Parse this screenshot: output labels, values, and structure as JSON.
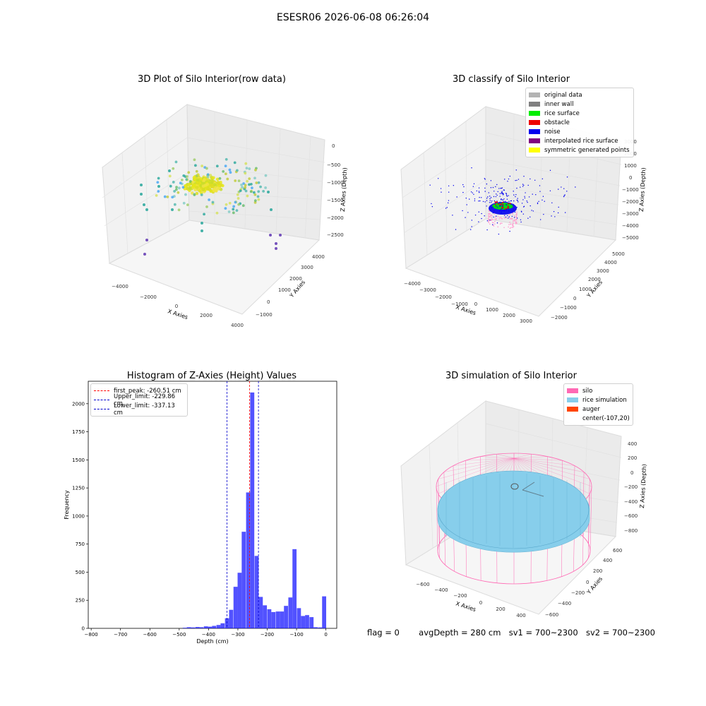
{
  "suptitle": "ESESR06 2026-06-08 06:26:04",
  "panels": {
    "raw": {
      "title": "3D Plot of Silo Interior(row data)",
      "x_label": "X Axies",
      "y_label": "Y Axies",
      "z_label": "Z Axies (Depth)",
      "x_ticks": [
        "−4000",
        "−2000",
        "0",
        "2000",
        "4000"
      ],
      "y_ticks": [
        "−1000",
        "0",
        "1000",
        "2000",
        "3000",
        "4000"
      ],
      "z_ticks": [
        "0",
        "−500",
        "−1000",
        "−1500",
        "−2000",
        "−2500"
      ]
    },
    "classify": {
      "title": "3D classify of Silo Interior",
      "x_label": "X Axies",
      "y_label": "Y Axies",
      "z_label": "Z Axies (Depth)",
      "x_ticks": [
        "−4000",
        "−3000",
        "−2000",
        "−1000",
        "0",
        "1000",
        "2000",
        "3000"
      ],
      "y_ticks": [
        "−2000",
        "−1000",
        "0",
        "1000",
        "2000",
        "3000",
        "4000",
        "5000"
      ],
      "z_ticks": [
        "3000",
        "2000",
        "1000",
        "0",
        "−1000",
        "−2000",
        "−3000",
        "−4000",
        "−5000"
      ],
      "legend": [
        {
          "label": "original data",
          "color": "#b3b3b3"
        },
        {
          "label": "inner wall",
          "color": "#808080"
        },
        {
          "label": "rice surface",
          "color": "#00ee00"
        },
        {
          "label": "obstacle",
          "color": "#ee0000"
        },
        {
          "label": "noise",
          "color": "#0000ee"
        },
        {
          "label": "interpolated rice surface",
          "color": "#800080"
        },
        {
          "label": "symmetric generated points",
          "color": "#ffff00"
        }
      ]
    },
    "simulation": {
      "title": "3D simulation of Silo Interior",
      "x_label": "X Axies",
      "y_label": "Y Axies",
      "z_label": "Z Axies (Depth)",
      "x_ticks": [
        "−600",
        "−400",
        "−200",
        "0",
        "200",
        "400"
      ],
      "y_ticks": [
        "−600",
        "−400",
        "−200",
        "0",
        "200",
        "400",
        "600"
      ],
      "z_ticks": [
        "400",
        "200",
        "0",
        "−200",
        "−400",
        "−600",
        "−800"
      ],
      "legend": [
        {
          "label": "silo",
          "color": "#ff69b4"
        },
        {
          "label": "rice simulation",
          "color": "#87ceeb"
        },
        {
          "label": "auger",
          "color": "#ff4500"
        },
        {
          "label": "center(-107,20)",
          "color": ""
        }
      ]
    }
  },
  "chart_data": {
    "type": "bar",
    "title": "Histogram of Z-Axies (Height) Values",
    "xlabel": "Depth (cm)",
    "ylabel": "Frequency",
    "xlim": [
      -810,
      37
    ],
    "ylim": [
      0,
      2200
    ],
    "x_ticks": [
      -800,
      -700,
      -600,
      -500,
      -400,
      -300,
      -200,
      -100,
      0
    ],
    "y_ticks": [
      0,
      250,
      500,
      750,
      1000,
      1250,
      1500,
      1750,
      2000
    ],
    "bin_width": 14.4,
    "bins": [
      {
        "x0": -488,
        "count": 5
      },
      {
        "x0": -474,
        "count": 10
      },
      {
        "x0": -460,
        "count": 8
      },
      {
        "x0": -445,
        "count": 12
      },
      {
        "x0": -431,
        "count": 10
      },
      {
        "x0": -416,
        "count": 18
      },
      {
        "x0": -402,
        "count": 15
      },
      {
        "x0": -388,
        "count": 22
      },
      {
        "x0": -373,
        "count": 30
      },
      {
        "x0": -359,
        "count": 45
      },
      {
        "x0": -344,
        "count": 90
      },
      {
        "x0": -330,
        "count": 165
      },
      {
        "x0": -315,
        "count": 370
      },
      {
        "x0": -301,
        "count": 495
      },
      {
        "x0": -287,
        "count": 860
      },
      {
        "x0": -272,
        "count": 1210
      },
      {
        "x0": -258,
        "count": 2100
      },
      {
        "x0": -243,
        "count": 645
      },
      {
        "x0": -229,
        "count": 280
      },
      {
        "x0": -215,
        "count": 205
      },
      {
        "x0": -200,
        "count": 170
      },
      {
        "x0": -186,
        "count": 145
      },
      {
        "x0": -171,
        "count": 150
      },
      {
        "x0": -157,
        "count": 150
      },
      {
        "x0": -143,
        "count": 200
      },
      {
        "x0": -128,
        "count": 275
      },
      {
        "x0": -114,
        "count": 705
      },
      {
        "x0": -99,
        "count": 180
      },
      {
        "x0": -85,
        "count": 110
      },
      {
        "x0": -71,
        "count": 118
      },
      {
        "x0": -56,
        "count": 100
      },
      {
        "x0": -42,
        "count": 10
      },
      {
        "x0": -27,
        "count": 8
      },
      {
        "x0": -13,
        "count": 285
      }
    ],
    "lines": [
      {
        "label": "first_peak: -260.51 cm",
        "x": -260.51,
        "color": "#ff0000"
      },
      {
        "label": "Upper_limit: -229.86 cm",
        "x": -229.86,
        "color": "#0000cc"
      },
      {
        "label": "Lower_limit: -337.13 cm",
        "x": -337.13,
        "color": "#0000cc"
      }
    ],
    "bar_color": "#0000ff",
    "bar_opacity": 0.68
  },
  "footer": {
    "flag": "flag = 0",
    "avg": "avgDepth = 280 cm",
    "sv1": "sv1 = 700~2300",
    "sv2": "sv2 = 700~2300"
  }
}
